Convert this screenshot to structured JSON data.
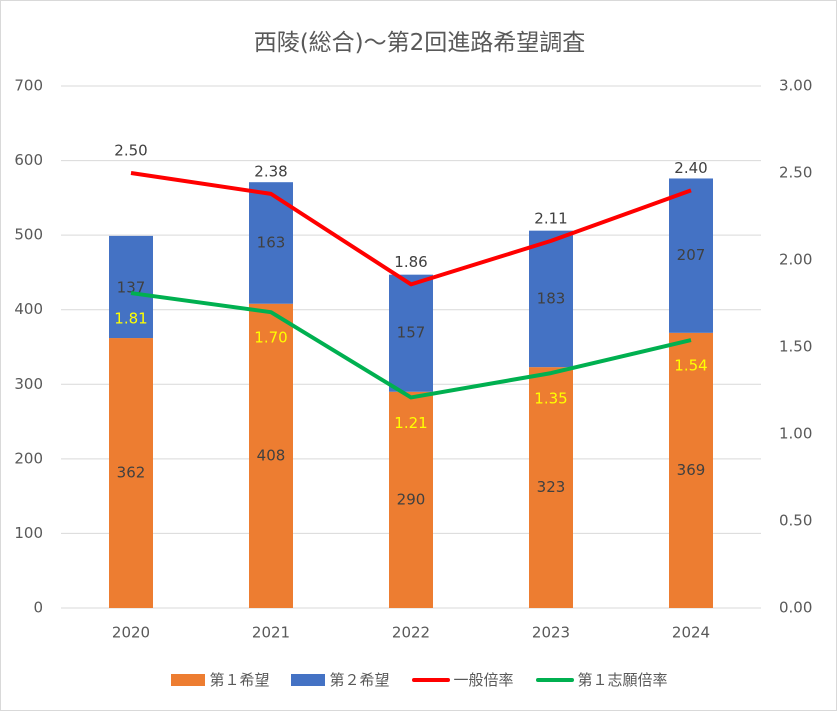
{
  "chart_data": {
    "type": "bar",
    "title": "西陵(総合)～第2回進路希望調査",
    "categories": [
      "2020",
      "2021",
      "2022",
      "2023",
      "2024"
    ],
    "series": [
      {
        "name": "第１希望",
        "kind": "bar",
        "axis": "left",
        "color": "#ED7D31",
        "values": [
          362,
          408,
          290,
          323,
          369
        ]
      },
      {
        "name": "第２希望",
        "kind": "bar",
        "axis": "left",
        "color": "#4472C4",
        "values": [
          137,
          163,
          157,
          183,
          207
        ]
      },
      {
        "name": "一般倍率",
        "kind": "line",
        "axis": "right",
        "color": "#FF0000",
        "values": [
          2.5,
          2.38,
          1.86,
          2.11,
          2.4
        ]
      },
      {
        "name": "第１志願倍率",
        "kind": "line",
        "axis": "right",
        "color": "#00B050",
        "values": [
          1.81,
          1.7,
          1.21,
          1.35,
          1.54
        ]
      }
    ],
    "y_left": {
      "min": 0,
      "max": 700,
      "ticks": [
        "0",
        "100",
        "200",
        "300",
        "400",
        "500",
        "600",
        "700"
      ]
    },
    "y_right": {
      "min": 0,
      "max": 3,
      "ticks": [
        "0.00",
        "0.50",
        "1.00",
        "1.50",
        "2.00",
        "2.50",
        "3.00"
      ]
    },
    "stacked": true,
    "grid": true,
    "legend": "bottom"
  }
}
